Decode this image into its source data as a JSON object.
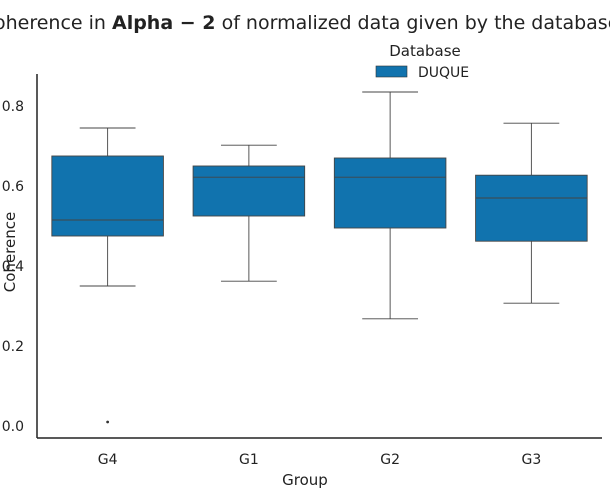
{
  "chart_data": {
    "type": "box",
    "title": {
      "prefix": "Coherence in ",
      "bold": "Alpha − 2",
      "suffix": " of normalized data given by the databases"
    },
    "xlabel": "Group",
    "ylabel": "Coherence",
    "ylim": [
      -0.03,
      0.88
    ],
    "yticks": [
      0.0,
      0.2,
      0.4,
      0.6,
      0.8
    ],
    "ytick_labels": [
      "0.0",
      "0.2",
      "0.4",
      "0.6",
      "0.8"
    ],
    "categories": [
      "G4",
      "G1",
      "G2",
      "G3"
    ],
    "legend": {
      "title": "Database",
      "placement": "top-center",
      "entries": [
        {
          "label": "DUQUE",
          "color": "#1173AE"
        }
      ]
    },
    "series": [
      {
        "name": "DUQUE",
        "color": "#1173AE",
        "boxes": [
          {
            "category": "G4",
            "whisker_low": 0.35,
            "q1": 0.475,
            "median": 0.515,
            "q3": 0.675,
            "whisker_high": 0.745,
            "outliers": [
              0.01
            ]
          },
          {
            "category": "G1",
            "whisker_low": 0.362,
            "q1": 0.525,
            "median": 0.622,
            "q3": 0.65,
            "whisker_high": 0.702,
            "outliers": []
          },
          {
            "category": "G2",
            "whisker_low": 0.268,
            "q1": 0.495,
            "median": 0.622,
            "q3": 0.67,
            "whisker_high": 0.835,
            "outliers": []
          },
          {
            "category": "G3",
            "whisker_low": 0.307,
            "q1": 0.462,
            "median": 0.57,
            "q3": 0.627,
            "whisker_high": 0.757,
            "outliers": []
          }
        ]
      }
    ],
    "grid": false
  }
}
